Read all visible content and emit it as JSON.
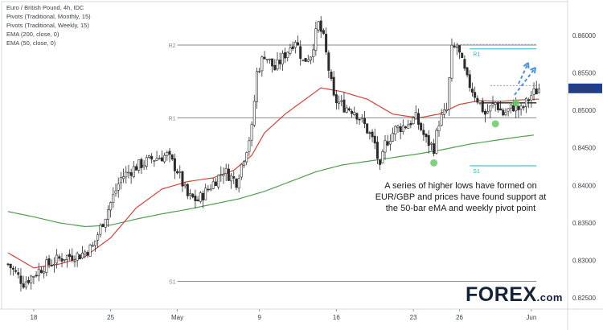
{
  "legend": {
    "title": "Euro / British Pound, 4h, IDC",
    "pivots_monthly": "Pivots (Traditional, Monthly, 15)",
    "pivots_weekly": "Pivots (Traditional, Weekly, 15)",
    "ema200": "EMA (200, close, 0)",
    "ema50": "EMA (50, close, 0)"
  },
  "annotation": {
    "line1": "A series of higher lows have formed on",
    "line2": "EUR/GBP and prices have found support at",
    "line3": "the 50-bar eMA and weekly pivot point"
  },
  "logo": {
    "text": "FOREX",
    "suffix": ".com"
  },
  "colors": {
    "up": "#2b2b2b",
    "down": "#2b2b2b",
    "ema50": "#d9413b",
    "ema200": "#4f9d4f",
    "monthly_pivot": "#8a8a8a",
    "weekly_pivot": "#2bb3c0",
    "last_price_bg": "#1c3f94",
    "higher_low_marker": "#66cc66",
    "projection_arrow": "#4a8fe0"
  },
  "chart_data": {
    "type": "candlestick",
    "title": "Euro / British Pound, 4h, IDC",
    "x_tick_labels": [
      "18",
      "25",
      "May",
      "9",
      "16",
      "23",
      "26",
      "Jun"
    ],
    "y_tick_labels": [
      "0.86000",
      "0.85500",
      "0.85000",
      "0.84500",
      "0.84000",
      "0.83500",
      "0.83000",
      "0.82500"
    ],
    "y_ticks": [
      0.86,
      0.855,
      0.85,
      0.845,
      0.84,
      0.835,
      0.83,
      0.825
    ],
    "ylim": [
      0.8235,
      0.8645
    ],
    "last_price": "0.85293",
    "price_path_anchors": [
      [
        0,
        0.8295
      ],
      [
        6,
        0.827
      ],
      [
        14,
        0.8292
      ],
      [
        22,
        0.8305
      ],
      [
        28,
        0.8307
      ],
      [
        33,
        0.8318
      ],
      [
        38,
        0.836
      ],
      [
        44,
        0.841
      ],
      [
        50,
        0.8425
      ],
      [
        56,
        0.8435
      ],
      [
        62,
        0.844
      ],
      [
        66,
        0.842
      ],
      [
        70,
        0.8385
      ],
      [
        74,
        0.838
      ],
      [
        78,
        0.8395
      ],
      [
        84,
        0.842
      ],
      [
        89,
        0.8405
      ],
      [
        93,
        0.845
      ],
      [
        95,
        0.8475
      ],
      [
        97,
        0.855
      ],
      [
        100,
        0.8575
      ],
      [
        104,
        0.8555
      ],
      [
        108,
        0.8575
      ],
      [
        112,
        0.8595
      ],
      [
        115,
        0.8565
      ],
      [
        118,
        0.8575
      ],
      [
        121,
        0.8615
      ],
      [
        123,
        0.8595
      ],
      [
        127,
        0.8515
      ],
      [
        131,
        0.8505
      ],
      [
        135,
        0.85
      ],
      [
        139,
        0.848
      ],
      [
        143,
        0.8455
      ],
      [
        145,
        0.842
      ],
      [
        147,
        0.8455
      ],
      [
        151,
        0.8475
      ],
      [
        155,
        0.848
      ],
      [
        159,
        0.849
      ],
      [
        163,
        0.846
      ],
      [
        166,
        0.845
      ],
      [
        168,
        0.8485
      ],
      [
        171,
        0.85
      ],
      [
        173,
        0.858
      ],
      [
        175,
        0.8585
      ],
      [
        179,
        0.854
      ],
      [
        183,
        0.8515
      ],
      [
        186,
        0.8495
      ],
      [
        190,
        0.851
      ],
      [
        193,
        0.8495
      ],
      [
        197,
        0.8505
      ],
      [
        200,
        0.85
      ],
      [
        204,
        0.852
      ],
      [
        207,
        0.8529
      ]
    ],
    "ema50_anchors": [
      [
        0,
        0.831
      ],
      [
        10,
        0.829
      ],
      [
        20,
        0.8295
      ],
      [
        30,
        0.8305
      ],
      [
        40,
        0.833
      ],
      [
        50,
        0.837
      ],
      [
        60,
        0.8395
      ],
      [
        70,
        0.8405
      ],
      [
        80,
        0.841
      ],
      [
        88,
        0.842
      ],
      [
        95,
        0.844
      ],
      [
        100,
        0.847
      ],
      [
        108,
        0.8495
      ],
      [
        116,
        0.8515
      ],
      [
        122,
        0.853
      ],
      [
        130,
        0.8525
      ],
      [
        140,
        0.8515
      ],
      [
        150,
        0.8495
      ],
      [
        160,
        0.849
      ],
      [
        168,
        0.8495
      ],
      [
        176,
        0.8508
      ],
      [
        184,
        0.8513
      ],
      [
        192,
        0.8512
      ],
      [
        200,
        0.8514
      ],
      [
        207,
        0.8515
      ]
    ],
    "ema200_anchors": [
      [
        0,
        0.8365
      ],
      [
        10,
        0.8358
      ],
      [
        20,
        0.835
      ],
      [
        30,
        0.8345
      ],
      [
        40,
        0.8347
      ],
      [
        50,
        0.8355
      ],
      [
        60,
        0.8362
      ],
      [
        70,
        0.8368
      ],
      [
        80,
        0.8375
      ],
      [
        90,
        0.8382
      ],
      [
        100,
        0.8392
      ],
      [
        110,
        0.8405
      ],
      [
        120,
        0.8418
      ],
      [
        130,
        0.8427
      ],
      [
        140,
        0.8432
      ],
      [
        150,
        0.8437
      ],
      [
        160,
        0.8442
      ],
      [
        170,
        0.8448
      ],
      [
        180,
        0.8455
      ],
      [
        190,
        0.846
      ],
      [
        200,
        0.8465
      ],
      [
        205,
        0.8467
      ]
    ],
    "pivot_levels": [
      {
        "label": "R2",
        "value": 0.8587,
        "type": "monthly"
      },
      {
        "label": "R1",
        "value": 0.849,
        "type": "monthly"
      },
      {
        "label": "S1",
        "value": 0.8272,
        "type": "monthly"
      },
      {
        "label": "R1",
        "value": 0.8582,
        "type": "weekly"
      },
      {
        "label": "",
        "value": 0.851,
        "type": "weekly-pivot"
      },
      {
        "label": "S1",
        "value": 0.8426,
        "type": "weekly"
      }
    ],
    "higher_low_markers": [
      [
        166,
        0.843
      ],
      [
        190,
        0.8482
      ],
      [
        198,
        0.851
      ]
    ]
  }
}
